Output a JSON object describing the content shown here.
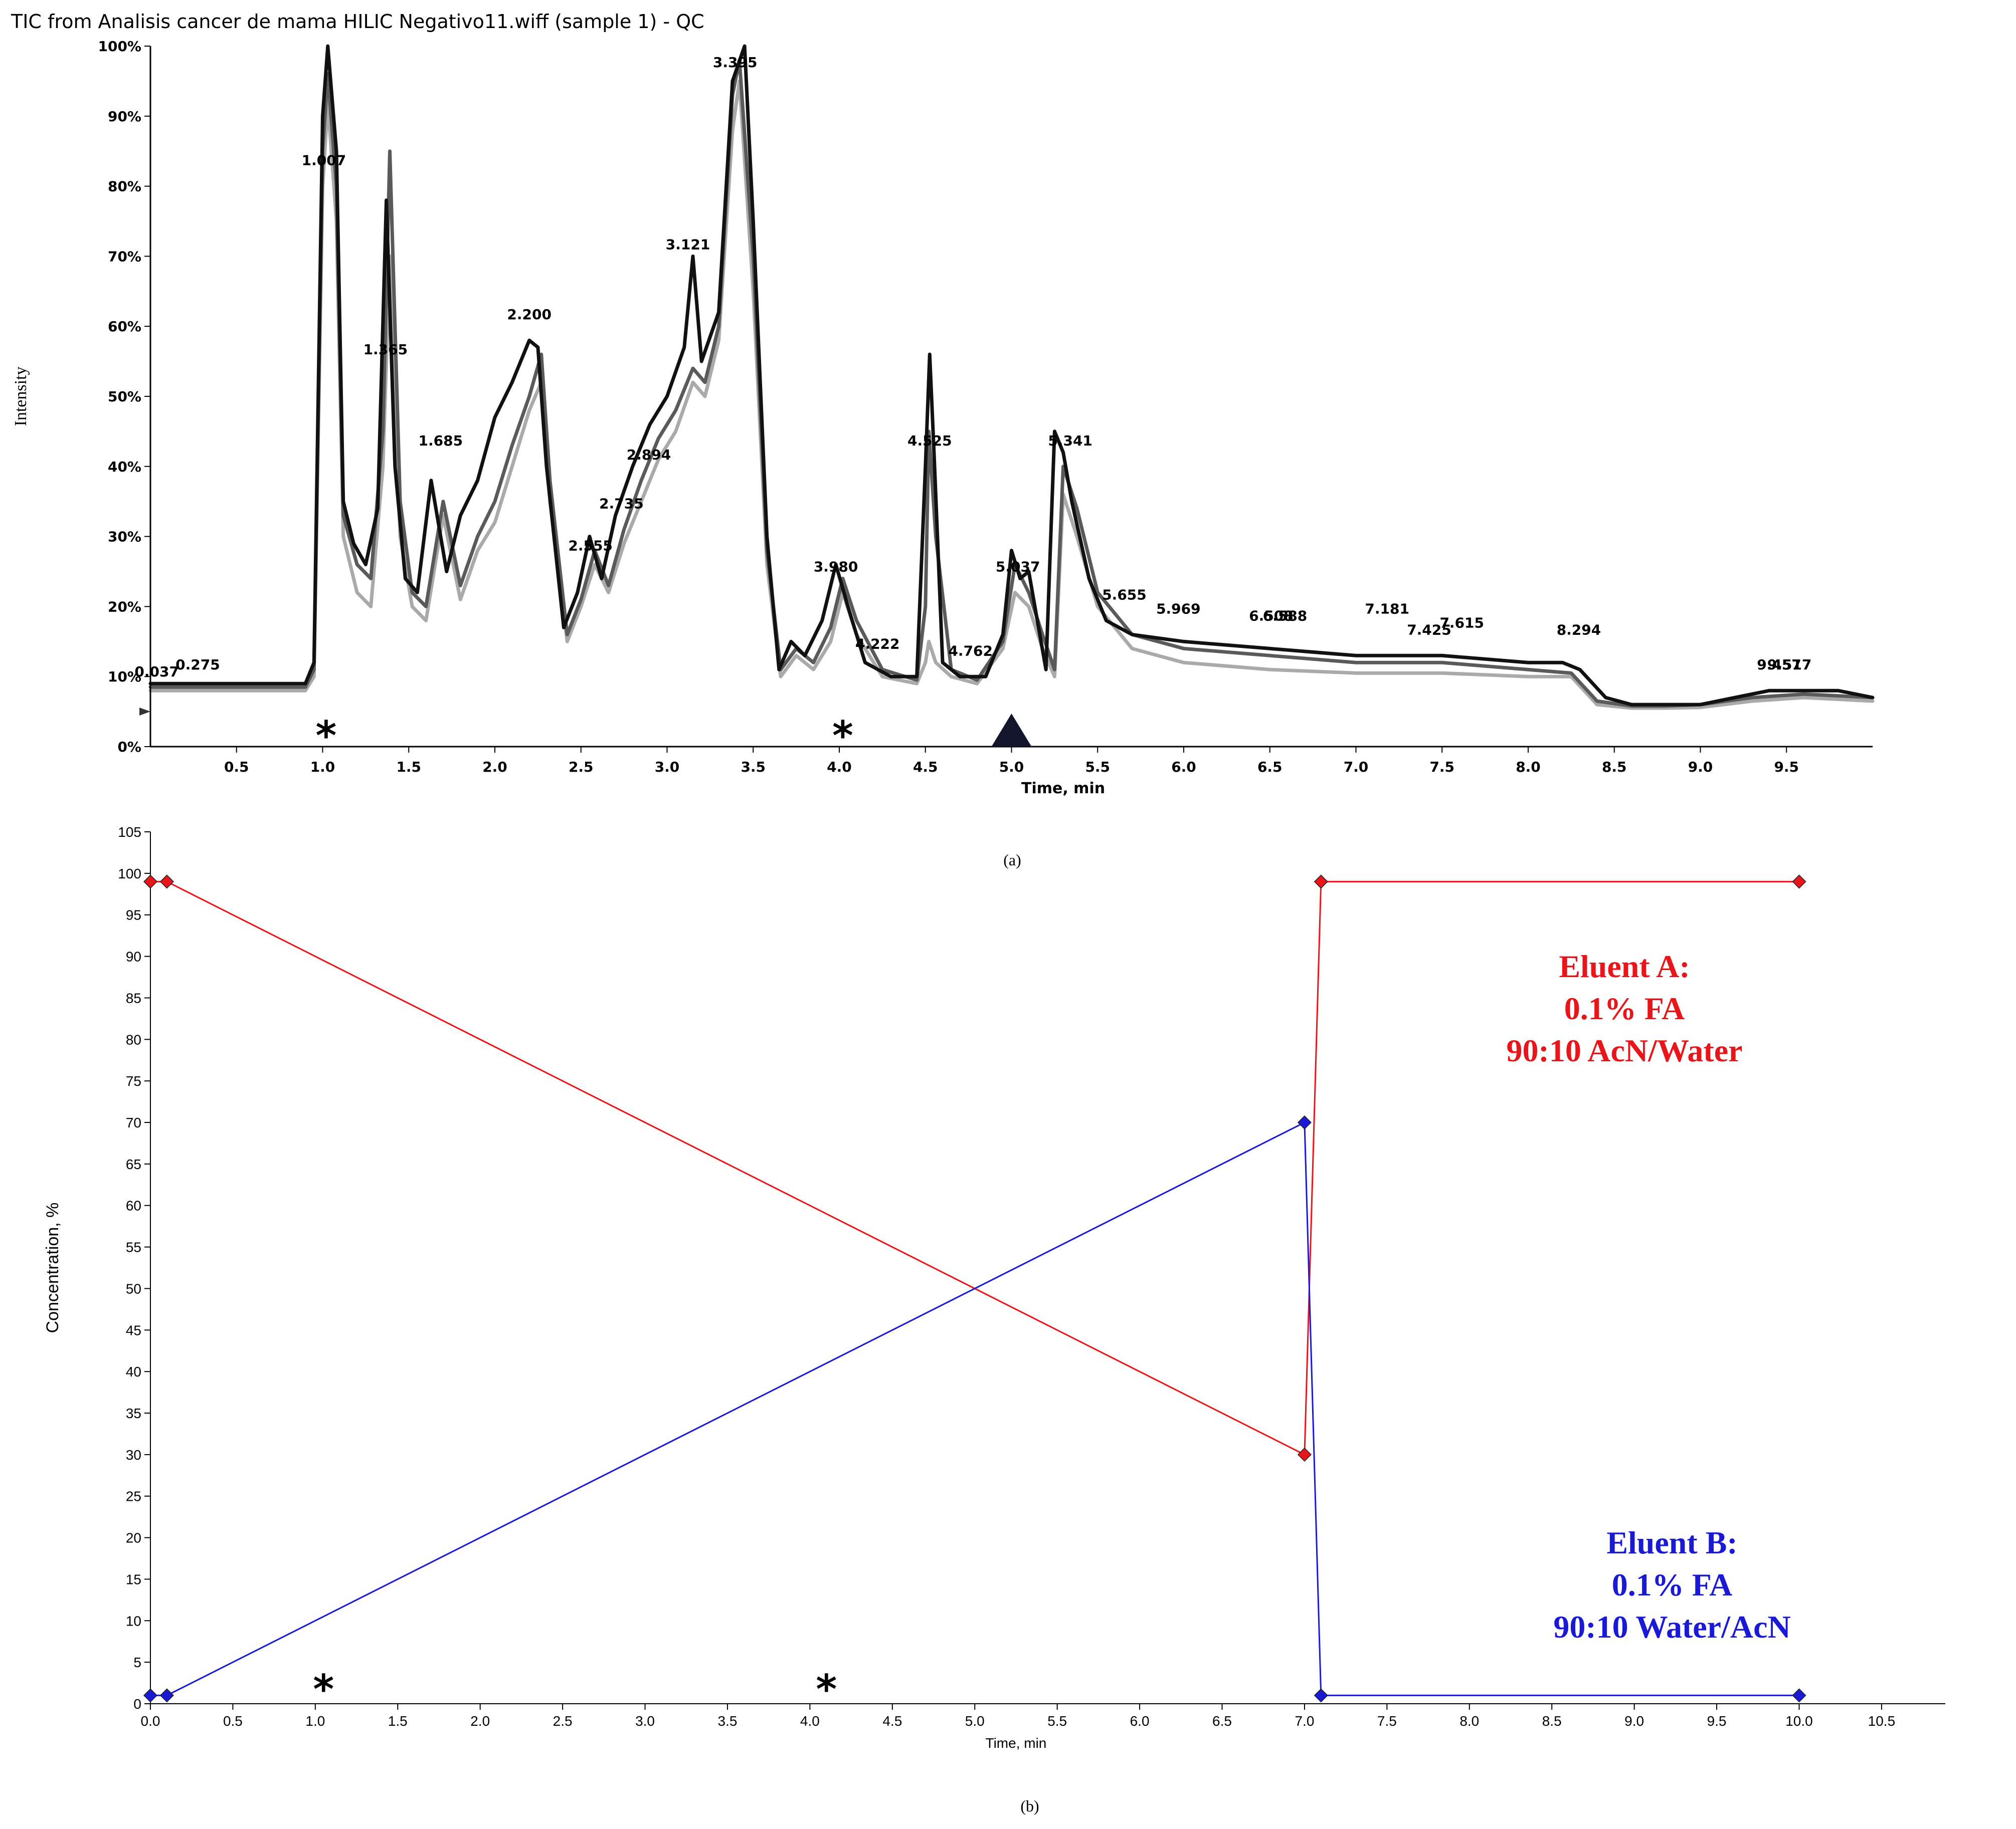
{
  "chart_data": [
    {
      "panel_label": "(a)",
      "type": "line",
      "title": "TIC from Analisis cancer de mama HILIC Negativo11.wiff (sample 1) - QC",
      "xlabel": "Time, min",
      "ylabel": "Intensity",
      "xlim": [
        0.0,
        10.0
      ],
      "ylim": [
        0,
        100
      ],
      "x_ticks": [
        0.5,
        1.0,
        1.5,
        2.0,
        2.5,
        3.0,
        3.5,
        4.0,
        4.5,
        5.0,
        5.5,
        6.0,
        6.5,
        7.0,
        7.5,
        8.0,
        8.5,
        9.0,
        9.5
      ],
      "x_tick_labels": [
        "0.5",
        "1.0",
        "1.5",
        "2.0",
        "2.5",
        "3.0",
        "3.5",
        "4.0",
        "4.5",
        "5.0",
        "5.5",
        "6.0",
        "6.5",
        "7.0",
        "7.5",
        "8.0",
        "8.5",
        "9.0",
        "9.5"
      ],
      "y_ticks": [
        0,
        10,
        20,
        30,
        40,
        50,
        60,
        70,
        80,
        90,
        100
      ],
      "y_tick_labels": [
        "0%",
        "10%",
        "20%",
        "30%",
        "40%",
        "50%",
        "60%",
        "70%",
        "80%",
        "90%",
        "100%"
      ],
      "grid": false,
      "series": [
        {
          "color": "#111111",
          "x": [
            0.0,
            0.1,
            0.3,
            0.5,
            0.7,
            0.9,
            0.95,
            1.0,
            1.03,
            1.08,
            1.12,
            1.18,
            1.25,
            1.32,
            1.37,
            1.42,
            1.48,
            1.55,
            1.63,
            1.72,
            1.8,
            1.9,
            2.0,
            2.1,
            2.2,
            2.25,
            2.3,
            2.4,
            2.48,
            2.55,
            2.62,
            2.7,
            2.8,
            2.9,
            3.0,
            3.1,
            3.15,
            3.2,
            3.3,
            3.38,
            3.45,
            3.5,
            3.58,
            3.65,
            3.72,
            3.8,
            3.9,
            3.98,
            4.05,
            4.15,
            4.3,
            4.45,
            4.5,
            4.525,
            4.55,
            4.6,
            4.7,
            4.85,
            4.95,
            5.0,
            5.05,
            5.1,
            5.15,
            5.2,
            5.25,
            5.3,
            5.35,
            5.45,
            5.55,
            5.7,
            6.0,
            6.5,
            7.0,
            7.5,
            8.0,
            8.2,
            8.3,
            8.45,
            8.6,
            8.8,
            9.0,
            9.2,
            9.4,
            9.6,
            9.8,
            10.0
          ],
          "y": [
            9,
            9,
            9,
            9,
            9,
            9,
            12,
            90,
            100,
            85,
            35,
            29,
            26,
            34,
            78,
            40,
            24,
            22,
            38,
            25,
            33,
            38,
            47,
            52,
            58,
            57,
            40,
            17,
            22,
            30,
            24,
            33,
            40,
            46,
            50,
            57,
            70,
            55,
            62,
            95,
            100,
            75,
            30,
            11,
            15,
            13,
            18,
            26,
            20,
            12,
            10,
            10,
            40,
            56,
            42,
            12,
            10,
            10,
            16,
            28,
            24,
            25,
            18,
            11,
            45,
            42,
            35,
            24,
            18,
            16,
            15,
            14,
            13,
            13,
            12,
            12,
            11,
            7,
            6,
            6,
            6,
            7,
            8,
            8,
            8,
            7
          ]
        },
        {
          "color": "#5a5a5a",
          "x": [
            0.0,
            0.3,
            0.7,
            0.9,
            0.95,
            1.0,
            1.03,
            1.08,
            1.12,
            1.2,
            1.28,
            1.35,
            1.39,
            1.45,
            1.52,
            1.6,
            1.7,
            1.8,
            1.9,
            2.0,
            2.1,
            2.2,
            2.27,
            2.32,
            2.42,
            2.5,
            2.58,
            2.66,
            2.75,
            2.85,
            2.95,
            3.05,
            3.15,
            3.22,
            3.3,
            3.38,
            3.42,
            3.5,
            3.58,
            3.66,
            3.75,
            3.85,
            3.95,
            4.02,
            4.1,
            4.25,
            4.45,
            4.5,
            4.52,
            4.56,
            4.65,
            4.8,
            4.95,
            5.02,
            5.1,
            5.18,
            5.25,
            5.3,
            5.38,
            5.5,
            5.7,
            6.0,
            6.5,
            7.0,
            7.5,
            8.0,
            8.25,
            8.4,
            8.6,
            8.8,
            9.0,
            9.3,
            9.6,
            10.0
          ],
          "y": [
            8.5,
            8.5,
            8.5,
            8.5,
            11,
            85,
            96,
            80,
            33,
            26,
            24,
            45,
            85,
            35,
            22,
            20,
            35,
            23,
            30,
            35,
            43,
            50,
            56,
            38,
            16,
            21,
            28,
            23,
            31,
            38,
            44,
            48,
            54,
            52,
            60,
            93,
            98,
            70,
            28,
            11,
            14,
            12,
            17,
            24,
            18,
            11,
            9.5,
            20,
            45,
            30,
            11,
            9.5,
            15,
            26,
            22,
            16,
            11,
            40,
            34,
            22,
            16,
            14,
            13,
            12,
            12,
            11,
            10.5,
            6.5,
            5.8,
            5.8,
            6,
            7,
            7.5,
            7
          ]
        },
        {
          "color": "#aaaaaa",
          "x": [
            0.0,
            0.3,
            0.7,
            0.9,
            0.95,
            1.0,
            1.03,
            1.08,
            1.12,
            1.2,
            1.28,
            1.35,
            1.39,
            1.45,
            1.52,
            1.6,
            1.7,
            1.8,
            1.9,
            2.0,
            2.1,
            2.2,
            2.27,
            2.32,
            2.42,
            2.5,
            2.58,
            2.66,
            2.75,
            2.85,
            2.95,
            3.05,
            3.15,
            3.22,
            3.3,
            3.38,
            3.42,
            3.5,
            3.58,
            3.66,
            3.75,
            3.85,
            3.95,
            4.02,
            4.1,
            4.25,
            4.45,
            4.5,
            4.52,
            4.56,
            4.65,
            4.8,
            4.95,
            5.02,
            5.1,
            5.18,
            5.25,
            5.3,
            5.38,
            5.5,
            5.7,
            6.0,
            6.5,
            7.0,
            7.5,
            8.0,
            8.25,
            8.4,
            8.6,
            8.8,
            9.0,
            9.3,
            9.6,
            10.0
          ],
          "y": [
            8,
            8,
            8,
            8,
            10,
            80,
            92,
            75,
            30,
            22,
            20,
            40,
            70,
            30,
            20,
            18,
            33,
            21,
            28,
            32,
            40,
            48,
            52,
            35,
            15,
            20,
            26,
            22,
            29,
            35,
            41,
            45,
            52,
            50,
            58,
            88,
            95,
            65,
            26,
            10,
            13,
            11,
            15,
            22,
            16,
            10,
            9,
            12,
            15,
            12,
            10,
            9,
            14,
            22,
            20,
            14,
            10,
            36,
            30,
            20,
            14,
            12,
            11,
            10.5,
            10.5,
            10,
            10,
            6,
            5.5,
            5.5,
            5.6,
            6.5,
            7,
            6.5
          ]
        }
      ],
      "peak_labels": [
        {
          "x": 0.037,
          "y": 10,
          "text": "0.037"
        },
        {
          "x": 0.275,
          "y": 11,
          "text": "0.275"
        },
        {
          "x": 1.007,
          "y": 83,
          "text": "1.007"
        },
        {
          "x": 1.365,
          "y": 56,
          "text": "1.365"
        },
        {
          "x": 1.685,
          "y": 43,
          "text": "1.685"
        },
        {
          "x": 2.2,
          "y": 61,
          "text": "2.200"
        },
        {
          "x": 2.555,
          "y": 28,
          "text": "2.555"
        },
        {
          "x": 2.735,
          "y": 34,
          "text": "2.735"
        },
        {
          "x": 2.894,
          "y": 41,
          "text": "2.894"
        },
        {
          "x": 3.121,
          "y": 71,
          "text": "3.121"
        },
        {
          "x": 3.395,
          "y": 97,
          "text": "3.395"
        },
        {
          "x": 3.98,
          "y": 25,
          "text": "3.980"
        },
        {
          "x": 4.222,
          "y": 14,
          "text": "4.222"
        },
        {
          "x": 4.525,
          "y": 43,
          "text": "4.525"
        },
        {
          "x": 4.762,
          "y": 13,
          "text": "4.762"
        },
        {
          "x": 5.037,
          "y": 25,
          "text": "5.037"
        },
        {
          "x": 5.341,
          "y": 43,
          "text": "5.341"
        },
        {
          "x": 5.655,
          "y": 21,
          "text": "5.655"
        },
        {
          "x": 5.969,
          "y": 19,
          "text": "5.969"
        },
        {
          "x": 6.508,
          "y": 18,
          "text": "6.508"
        },
        {
          "x": 6.588,
          "y": 18,
          "text": "6.588"
        },
        {
          "x": 7.181,
          "y": 19,
          "text": "7.181"
        },
        {
          "x": 7.425,
          "y": 16,
          "text": "7.425"
        },
        {
          "x": 7.615,
          "y": 17,
          "text": "7.615"
        },
        {
          "x": 8.294,
          "y": 16,
          "text": "8.294"
        },
        {
          "x": 9.457,
          "y": 11,
          "text": "9.457"
        },
        {
          "x": 9.517,
          "y": 11,
          "text": "9.517"
        }
      ],
      "markers": [
        {
          "type": "asterisk",
          "x": 1.02,
          "y": 1,
          "text": "*"
        },
        {
          "type": "asterisk",
          "x": 4.02,
          "y": 1,
          "text": "*"
        },
        {
          "type": "triangle",
          "x": 5.0,
          "y": 0
        }
      ]
    },
    {
      "panel_label": "(b)",
      "type": "line",
      "title": "",
      "xlabel": "Time, min",
      "ylabel": "Concentration, %",
      "xlim": [
        0.0,
        10.5
      ],
      "ylim": [
        0,
        105
      ],
      "x_ticks": [
        0.0,
        0.5,
        1.0,
        1.5,
        2.0,
        2.5,
        3.0,
        3.5,
        4.0,
        4.5,
        5.0,
        5.5,
        6.0,
        6.5,
        7.0,
        7.5,
        8.0,
        8.5,
        9.0,
        9.5,
        10.0,
        10.5
      ],
      "x_tick_labels": [
        "0.0",
        "0.5",
        "1.0",
        "1.5",
        "2.0",
        "2.5",
        "3.0",
        "3.5",
        "4.0",
        "4.5",
        "5.0",
        "5.5",
        "6.0",
        "6.5",
        "7.0",
        "7.5",
        "8.0",
        "8.5",
        "9.0",
        "9.5",
        "10.0",
        "10.5"
      ],
      "y_ticks": [
        0,
        5,
        10,
        15,
        20,
        25,
        30,
        35,
        40,
        45,
        50,
        55,
        60,
        65,
        70,
        75,
        80,
        85,
        90,
        95,
        100,
        105
      ],
      "y_tick_labels": [
        "0",
        "5",
        "10",
        "15",
        "20",
        "25",
        "30",
        "35",
        "40",
        "45",
        "50",
        "55",
        "60",
        "65",
        "70",
        "75",
        "80",
        "85",
        "90",
        "95",
        "100",
        "105"
      ],
      "grid": false,
      "series": [
        {
          "name": "Eluent A",
          "color": "#e8161b",
          "x": [
            0.0,
            0.1,
            7.0,
            7.1,
            10.0
          ],
          "y": [
            99,
            99,
            30,
            99,
            99
          ]
        },
        {
          "name": "Eluent B",
          "color": "#1a1ad6",
          "x": [
            0.0,
            0.1,
            7.0,
            7.1,
            10.0
          ],
          "y": [
            1,
            1,
            70,
            1,
            1
          ]
        }
      ],
      "annotations": [
        {
          "series": "Eluent A",
          "color": "#e8161b",
          "lines": [
            "Eluent A:",
            "0.1% FA",
            "90:10 AcN/Water"
          ]
        },
        {
          "series": "Eluent B",
          "color": "#1a1ad6",
          "lines": [
            "Eluent B:",
            "0.1% FA",
            "90:10 Water/AcN"
          ]
        }
      ],
      "markers": [
        {
          "type": "asterisk",
          "x": 1.05,
          "y": 1.5,
          "text": "*"
        },
        {
          "type": "asterisk",
          "x": 4.1,
          "y": 1.5,
          "text": "*"
        }
      ]
    }
  ]
}
